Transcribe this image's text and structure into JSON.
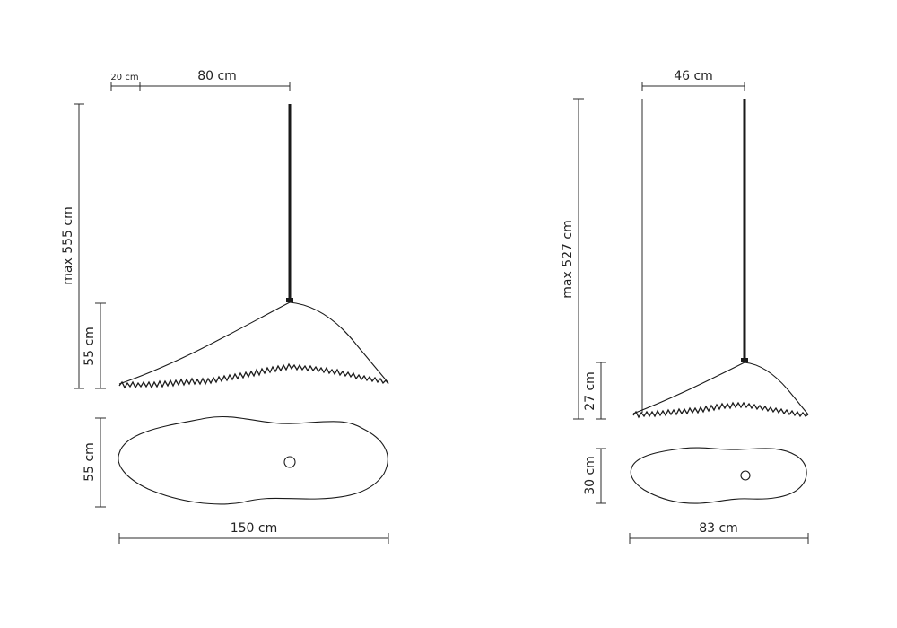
{
  "large": {
    "dims": {
      "offset": "20 cm",
      "cable_to_edge": "80 cm",
      "max_height": "max 555 cm",
      "shade_height": "55 cm",
      "depth": "55 cm",
      "width": "150 cm"
    }
  },
  "small": {
    "dims": {
      "cable_to_edge": "46 cm",
      "max_height": "max 527 cm",
      "shade_height": "27 cm",
      "depth": "30 cm",
      "width": "83 cm"
    }
  },
  "colors": {
    "line": "#1a1a1a",
    "text": "#222222",
    "background": "#ffffff"
  }
}
